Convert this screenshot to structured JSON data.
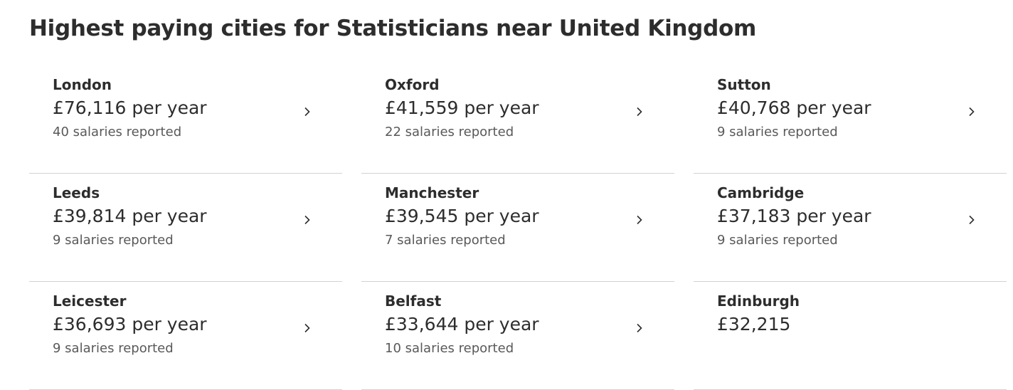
{
  "header": {
    "title": "Highest paying cities for Statisticians near United Kingdom"
  },
  "cities": [
    {
      "name": "London",
      "salary": "£76,116 per year",
      "reports": "40 salaries reported"
    },
    {
      "name": "Oxford",
      "salary": "£41,559 per year",
      "reports": "22 salaries reported"
    },
    {
      "name": "Sutton",
      "salary": "£40,768 per year",
      "reports": "9 salaries reported"
    },
    {
      "name": "Leeds",
      "salary": "£39,814 per year",
      "reports": "9 salaries reported"
    },
    {
      "name": "Manchester",
      "salary": "£39,545 per year",
      "reports": "7 salaries reported"
    },
    {
      "name": "Cambridge",
      "salary": "£37,183 per year",
      "reports": "9 salaries reported"
    },
    {
      "name": "Leicester",
      "salary": "£36,693 per year",
      "reports": "9 salaries reported"
    },
    {
      "name": "Belfast",
      "salary": "£33,644 per year",
      "reports": "10 salaries reported"
    },
    {
      "name": "Edinburgh",
      "salary": "£32,215",
      "reports": ""
    }
  ],
  "icons": {
    "chevron": "chevron-right-icon"
  },
  "colors": {
    "text": "#2d2d2d",
    "secondary_text": "#595959",
    "divider": "#d4d2d0"
  }
}
